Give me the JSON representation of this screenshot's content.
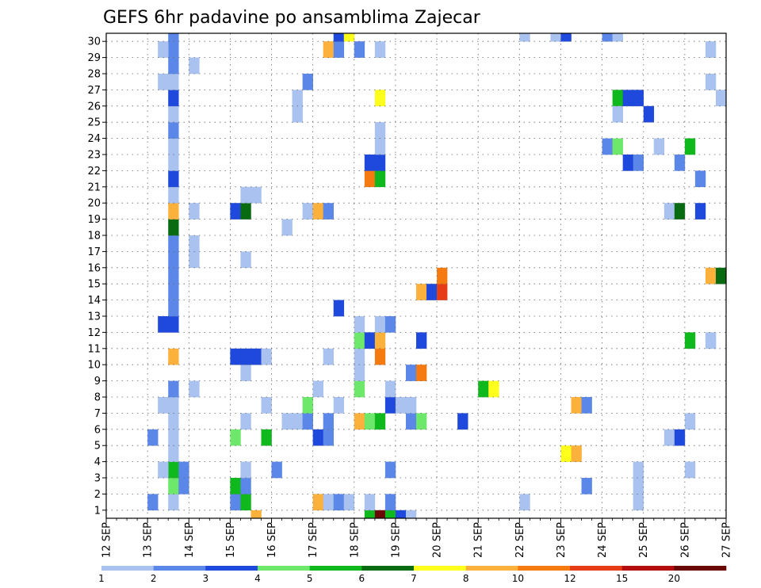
{
  "chart_data": {
    "type": "heatmap",
    "title": "GEFS 6hr padavine po ansamblima Zajecar",
    "xlabel": "",
    "ylabel": "",
    "x_tick_labels": [
      "12 SEP",
      "13 SEP",
      "14 SEP",
      "15 SEP",
      "16 SEP",
      "17 SEP",
      "18 SEP",
      "19 SEP",
      "20 SEP",
      "21 SEP",
      "22 SEP",
      "23 SEP",
      "24 SEP",
      "25 SEP",
      "26 SEP",
      "27 SEP"
    ],
    "y_tick_labels": [
      "1",
      "2",
      "3",
      "4",
      "5",
      "6",
      "7",
      "8",
      "9",
      "10",
      "11",
      "12",
      "13",
      "14",
      "15",
      "16",
      "17",
      "18",
      "19",
      "20",
      "21",
      "22",
      "23",
      "24",
      "25",
      "26",
      "27",
      "28",
      "29",
      "30"
    ],
    "xlim_steps": [
      0,
      60
    ],
    "ylim_members": [
      0,
      30
    ],
    "grid": true,
    "colorbar": {
      "placement": "bottom",
      "labels": [
        "1",
        "2",
        "3",
        "4",
        "5",
        "6",
        "7",
        "8",
        "10",
        "12",
        "15",
        "20"
      ],
      "colors": [
        "#a9c2f0",
        "#5b88e8",
        "#1f48dc",
        "#6ee86a",
        "#0fb81c",
        "#096b11",
        "#ffff1e",
        "#fbb13c",
        "#f57a10",
        "#e73d17",
        "#b40e0e",
        "#6a0808"
      ]
    },
    "cells": [
      [
        6,
        0,
        1
      ],
      [
        6,
        1,
        4
      ],
      [
        6,
        2,
        5
      ],
      [
        6,
        3,
        1
      ],
      [
        6,
        4,
        1
      ],
      [
        6,
        5,
        1
      ],
      [
        6,
        6,
        1
      ],
      [
        6,
        7,
        2
      ],
      [
        6,
        9,
        8
      ],
      [
        6,
        11,
        3
      ],
      [
        6,
        12,
        2
      ],
      [
        6,
        13,
        2
      ],
      [
        6,
        14,
        2
      ],
      [
        6,
        15,
        2
      ],
      [
        6,
        16,
        2
      ],
      [
        6,
        17,
        6
      ],
      [
        6,
        18,
        8
      ],
      [
        6,
        19,
        1
      ],
      [
        6,
        20,
        3
      ],
      [
        6,
        21,
        1
      ],
      [
        6,
        22,
        1
      ],
      [
        6,
        23,
        2
      ],
      [
        6,
        24,
        1
      ],
      [
        6,
        25,
        3
      ],
      [
        6,
        26,
        1
      ],
      [
        6,
        27,
        2
      ],
      [
        6,
        28,
        2
      ],
      [
        6,
        29,
        2
      ],
      [
        5,
        2,
        1
      ],
      [
        5,
        6,
        1
      ],
      [
        5,
        11,
        3
      ],
      [
        5,
        26,
        1
      ],
      [
        5,
        28,
        1
      ],
      [
        4,
        4,
        2
      ],
      [
        4,
        0,
        2
      ],
      [
        7,
        1,
        2
      ],
      [
        7,
        2,
        2
      ],
      [
        8,
        7,
        1
      ],
      [
        8,
        15,
        1
      ],
      [
        8,
        16,
        1
      ],
      [
        8,
        18,
        1
      ],
      [
        8,
        27,
        1
      ],
      [
        12,
        0,
        2
      ],
      [
        12,
        1,
        5
      ],
      [
        12,
        4,
        4
      ],
      [
        12,
        9,
        3
      ],
      [
        12,
        18,
        3
      ],
      [
        13,
        0,
        5
      ],
      [
        13,
        1,
        2
      ],
      [
        13,
        2,
        1
      ],
      [
        13,
        5,
        1
      ],
      [
        13,
        8,
        1
      ],
      [
        13,
        9,
        3
      ],
      [
        13,
        15,
        1
      ],
      [
        13,
        18,
        6
      ],
      [
        13,
        19,
        1
      ],
      [
        14,
        -1,
        8
      ],
      [
        14,
        9,
        3
      ],
      [
        14,
        19,
        1
      ],
      [
        15,
        4,
        5
      ],
      [
        15,
        6,
        1
      ],
      [
        15,
        9,
        1
      ],
      [
        16,
        2,
        2
      ],
      [
        17,
        5,
        1
      ],
      [
        17,
        17,
        1
      ],
      [
        18,
        5,
        1
      ],
      [
        18,
        24,
        1
      ],
      [
        18,
        25,
        1
      ],
      [
        19,
        5,
        2
      ],
      [
        19,
        6,
        4
      ],
      [
        19,
        18,
        1
      ],
      [
        19,
        26,
        2
      ],
      [
        20,
        0,
        8
      ],
      [
        20,
        4,
        3
      ],
      [
        20,
        7,
        1
      ],
      [
        20,
        18,
        8
      ],
      [
        21,
        0,
        1
      ],
      [
        21,
        4,
        2
      ],
      [
        21,
        5,
        2
      ],
      [
        21,
        9,
        1
      ],
      [
        21,
        18,
        2
      ],
      [
        21,
        28,
        8
      ],
      [
        22,
        0,
        2
      ],
      [
        22,
        6,
        1
      ],
      [
        22,
        12,
        3
      ],
      [
        22,
        28,
        2
      ],
      [
        22,
        29,
        3
      ],
      [
        23,
        0,
        1
      ],
      [
        23,
        29,
        7
      ],
      [
        24,
        5,
        8
      ],
      [
        24,
        7,
        4
      ],
      [
        24,
        8,
        1
      ],
      [
        24,
        9,
        1
      ],
      [
        24,
        10,
        4
      ],
      [
        24,
        11,
        1
      ],
      [
        24,
        28,
        2
      ],
      [
        25,
        -1,
        5
      ],
      [
        25,
        0,
        1
      ],
      [
        25,
        5,
        4
      ],
      [
        25,
        10,
        3
      ],
      [
        25,
        20,
        9
      ],
      [
        25,
        21,
        3
      ],
      [
        26,
        -1,
        12
      ],
      [
        26,
        5,
        5
      ],
      [
        26,
        9,
        9
      ],
      [
        26,
        10,
        8
      ],
      [
        26,
        11,
        1
      ],
      [
        26,
        20,
        5
      ],
      [
        26,
        21,
        3
      ],
      [
        26,
        22,
        1
      ],
      [
        26,
        23,
        1
      ],
      [
        26,
        25,
        7
      ],
      [
        26,
        28,
        1
      ],
      [
        27,
        -1,
        5
      ],
      [
        27,
        0,
        2
      ],
      [
        27,
        2,
        2
      ],
      [
        27,
        6,
        3
      ],
      [
        27,
        7,
        1
      ],
      [
        27,
        11,
        2
      ],
      [
        28,
        -1,
        3
      ],
      [
        28,
        6,
        1
      ],
      [
        29,
        -1,
        1
      ],
      [
        29,
        5,
        2
      ],
      [
        29,
        6,
        1
      ],
      [
        29,
        8,
        2
      ],
      [
        30,
        5,
        4
      ],
      [
        30,
        8,
        9
      ],
      [
        30,
        10,
        3
      ],
      [
        30,
        13,
        8
      ],
      [
        31,
        13,
        3
      ],
      [
        32,
        13,
        10
      ],
      [
        32,
        14,
        9
      ],
      [
        34,
        5,
        3
      ],
      [
        36,
        7,
        5
      ],
      [
        37,
        7,
        7
      ],
      [
        40,
        0,
        1
      ],
      [
        40,
        29,
        1
      ],
      [
        43,
        29,
        1
      ],
      [
        44,
        3,
        7
      ],
      [
        44,
        29,
        3
      ],
      [
        45,
        3,
        8
      ],
      [
        45,
        6,
        8
      ],
      [
        46,
        6,
        2
      ],
      [
        46,
        1,
        2
      ],
      [
        48,
        22,
        2
      ],
      [
        48,
        29,
        2
      ],
      [
        49,
        22,
        4
      ],
      [
        49,
        25,
        5
      ],
      [
        49,
        24,
        1
      ],
      [
        49,
        29,
        1
      ],
      [
        50,
        21,
        3
      ],
      [
        50,
        25,
        3
      ],
      [
        51,
        2,
        1
      ],
      [
        51,
        0,
        1
      ],
      [
        51,
        1,
        1
      ],
      [
        51,
        21,
        2
      ],
      [
        51,
        25,
        3
      ],
      [
        52,
        24,
        3
      ],
      [
        53,
        22,
        1
      ],
      [
        54,
        4,
        13
      ],
      [
        54,
        18,
        1
      ],
      [
        55,
        4,
        3
      ],
      [
        55,
        21,
        2
      ],
      [
        55,
        18,
        6
      ],
      [
        56,
        22,
        5
      ],
      [
        56,
        10,
        5
      ],
      [
        56,
        5,
        1
      ],
      [
        56,
        2,
        1
      ],
      [
        57,
        18,
        3
      ],
      [
        57,
        20,
        2
      ],
      [
        58,
        26,
        1
      ],
      [
        58,
        28,
        1
      ],
      [
        59,
        25,
        1
      ],
      [
        58,
        14,
        8
      ],
      [
        59,
        14,
        6
      ],
      [
        60,
        14,
        9
      ],
      [
        60,
        13,
        10
      ],
      [
        61,
        13,
        3
      ],
      [
        58,
        10,
        1
      ],
      [
        58,
        10,
        1
      ]
    ]
  }
}
